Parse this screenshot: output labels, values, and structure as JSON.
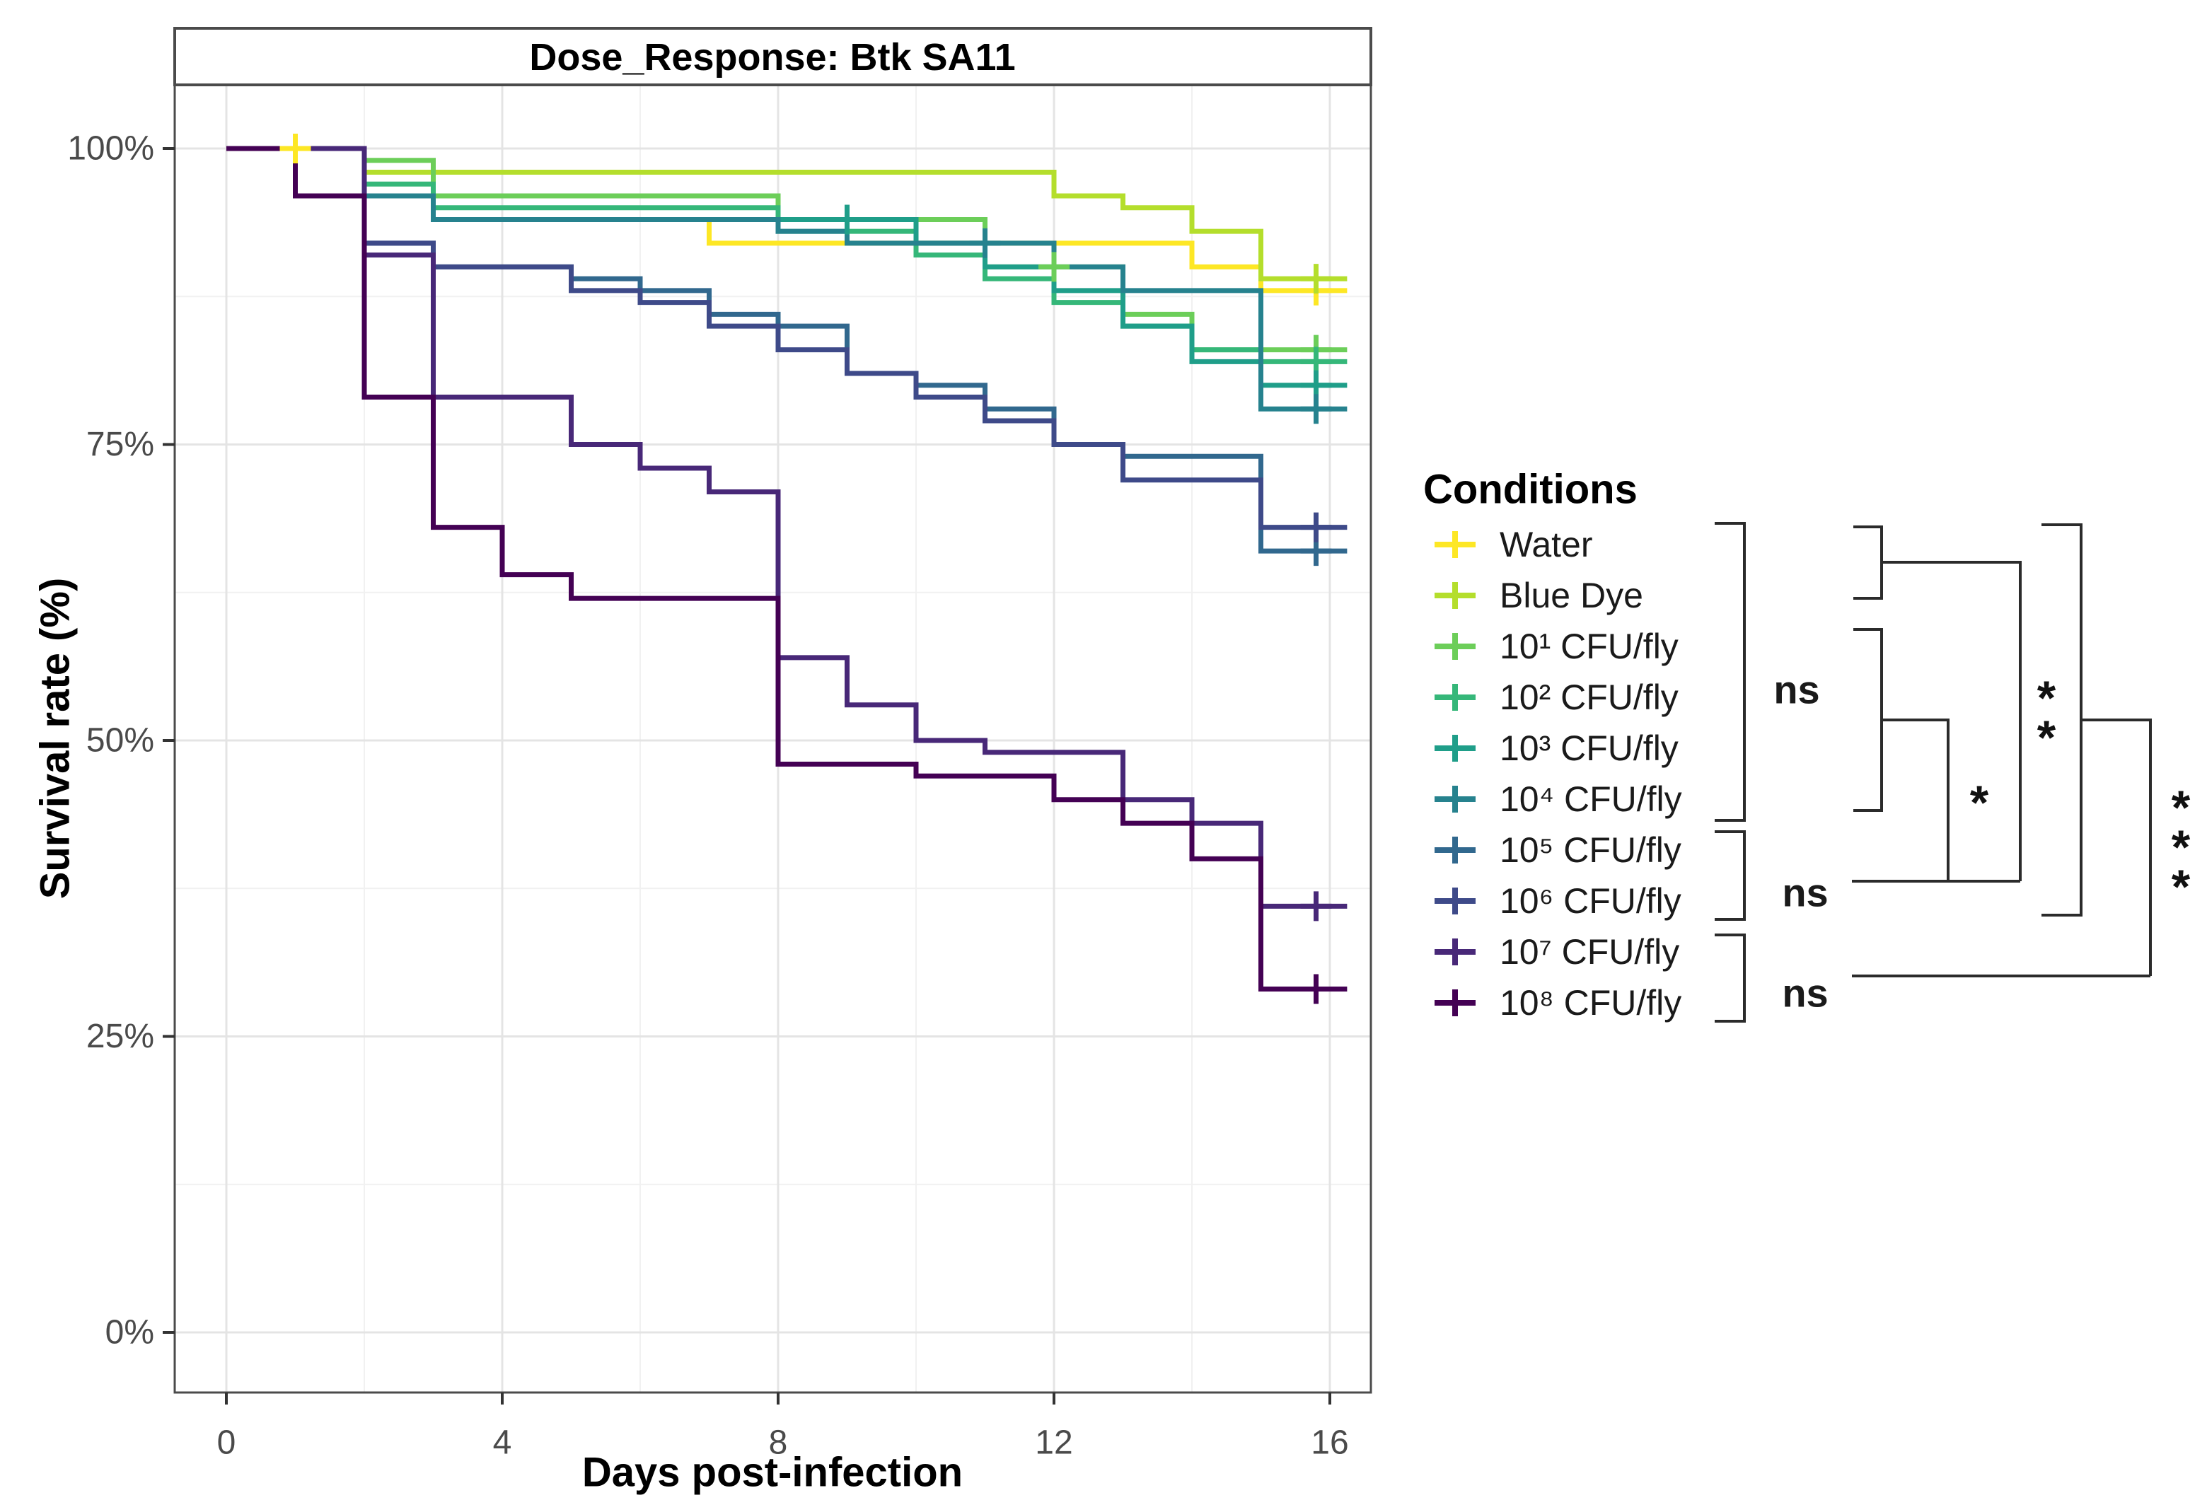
{
  "chart": {
    "title": "Dose_Response: Btk SA11",
    "x_axis": {
      "title": "Days post-infection",
      "tick_labels": [
        "0",
        "4",
        "8",
        "12",
        "16"
      ],
      "tick_values": [
        0,
        4,
        8,
        12,
        16
      ],
      "minor_values": [
        2,
        6,
        10,
        14
      ],
      "range": [
        0,
        16
      ]
    },
    "y_axis": {
      "title": "Survival rate (%)",
      "tick_labels": [
        "100%",
        "75%",
        "50%",
        "25%",
        "0%"
      ],
      "tick_values": [
        100,
        75,
        50,
        25,
        0
      ],
      "minor_values": [
        87.5,
        62.5,
        37.5,
        12.5
      ],
      "range": [
        0,
        100
      ]
    },
    "grid": "on"
  },
  "legend": {
    "title": "Conditions",
    "position": "right",
    "items": [
      {
        "label": "Water",
        "color": "#FDE725",
        "key": "plus-line"
      },
      {
        "label": "Blue Dye",
        "color": "#B4DE2C",
        "key": "plus-line"
      },
      {
        "label": "10¹ CFU/fly",
        "color": "#6CCE59",
        "key": "plus-line"
      },
      {
        "label": "10² CFU/fly",
        "color": "#35B779",
        "key": "plus-line"
      },
      {
        "label": "10³ CFU/fly",
        "color": "#1F9E89",
        "key": "plus-line"
      },
      {
        "label": "10⁴ CFU/fly",
        "color": "#26828E",
        "key": "plus-line"
      },
      {
        "label": "10⁵ CFU/fly",
        "color": "#31688E",
        "key": "plus-line"
      },
      {
        "label": "10⁶ CFU/fly",
        "color": "#3E4A89",
        "key": "plus-line"
      },
      {
        "label": "10⁷ CFU/fly",
        "color": "#482878",
        "key": "plus-line"
      },
      {
        "label": "10⁸ CFU/fly",
        "color": "#440154",
        "key": "plus-line"
      }
    ]
  },
  "chart_data": {
    "type": "line",
    "subtype": "kaplan-meier-step-survival",
    "title": "Dose_Response: Btk SA11",
    "xlabel": "Days post-infection",
    "ylabel": "Survival rate (%)",
    "xlim": [
      0,
      16.5
    ],
    "ylim": [
      0,
      100
    ],
    "units": {
      "x": "days",
      "y": "percent"
    },
    "series": [
      {
        "name": "Water",
        "color": "#FDE725",
        "points": [
          [
            0,
            100
          ],
          [
            2,
            96
          ],
          [
            3,
            94
          ],
          [
            7,
            92
          ],
          [
            14,
            90
          ],
          [
            15,
            88
          ],
          [
            16,
            88
          ]
        ],
        "censors": [
          [
            1,
            100
          ],
          [
            15.8,
            88
          ]
        ]
      },
      {
        "name": "Blue Dye",
        "color": "#B4DE2C",
        "points": [
          [
            0,
            100
          ],
          [
            2,
            98
          ],
          [
            12,
            96
          ],
          [
            13,
            95
          ],
          [
            14,
            93
          ],
          [
            15,
            89
          ],
          [
            16,
            89
          ]
        ],
        "censors": [
          [
            15.8,
            89
          ]
        ]
      },
      {
        "name": "10¹ CFU/fly",
        "color": "#6CCE59",
        "points": [
          [
            0,
            100
          ],
          [
            2,
            99
          ],
          [
            3,
            96
          ],
          [
            8,
            94
          ],
          [
            11,
            90
          ],
          [
            13,
            86
          ],
          [
            14,
            83
          ],
          [
            16,
            83
          ]
        ],
        "censors": [
          [
            12,
            90
          ],
          [
            15.8,
            83
          ]
        ]
      },
      {
        "name": "10² CFU/fly",
        "color": "#35B779",
        "points": [
          [
            0,
            100
          ],
          [
            2,
            97
          ],
          [
            3,
            95
          ],
          [
            8,
            93
          ],
          [
            10,
            91
          ],
          [
            11,
            89
          ],
          [
            12,
            87
          ],
          [
            13,
            85
          ],
          [
            14,
            83
          ],
          [
            15,
            82
          ],
          [
            16,
            82
          ]
        ],
        "censors": [
          [
            15.8,
            82
          ]
        ]
      },
      {
        "name": "10³ CFU/fly",
        "color": "#1F9E89",
        "points": [
          [
            0,
            100
          ],
          [
            2,
            96
          ],
          [
            3,
            94
          ],
          [
            10,
            92
          ],
          [
            11,
            90
          ],
          [
            12,
            88
          ],
          [
            13,
            85
          ],
          [
            14,
            82
          ],
          [
            15,
            80
          ],
          [
            16,
            80
          ]
        ],
        "censors": [
          [
            9,
            94
          ],
          [
            15.8,
            80
          ]
        ]
      },
      {
        "name": "10⁴ CFU/fly",
        "color": "#26828E",
        "points": [
          [
            0,
            100
          ],
          [
            2,
            96
          ],
          [
            3,
            94
          ],
          [
            8,
            93
          ],
          [
            9,
            92
          ],
          [
            12,
            90
          ],
          [
            13,
            88
          ],
          [
            15,
            78
          ],
          [
            16,
            78
          ]
        ],
        "censors": [
          [
            11,
            92
          ],
          [
            15.8,
            78
          ]
        ]
      },
      {
        "name": "10⁵ CFU/fly",
        "color": "#31688E",
        "points": [
          [
            0,
            100
          ],
          [
            2,
            92
          ],
          [
            3,
            90
          ],
          [
            5,
            89
          ],
          [
            6,
            88
          ],
          [
            7,
            86
          ],
          [
            8,
            85
          ],
          [
            9,
            81
          ],
          [
            10,
            80
          ],
          [
            11,
            78
          ],
          [
            12,
            75
          ],
          [
            13,
            74
          ],
          [
            15,
            66
          ],
          [
            16,
            66
          ]
        ],
        "censors": [
          [
            15.8,
            66
          ]
        ]
      },
      {
        "name": "10⁶ CFU/fly",
        "color": "#3E4A89",
        "points": [
          [
            0,
            100
          ],
          [
            2,
            92
          ],
          [
            3,
            90
          ],
          [
            5,
            88
          ],
          [
            6,
            87
          ],
          [
            7,
            85
          ],
          [
            8,
            83
          ],
          [
            9,
            81
          ],
          [
            10,
            79
          ],
          [
            11,
            77
          ],
          [
            12,
            75
          ],
          [
            13,
            72
          ],
          [
            15,
            68
          ],
          [
            16,
            68
          ]
        ],
        "censors": [
          [
            15.8,
            68
          ]
        ]
      },
      {
        "name": "10⁷ CFU/fly",
        "color": "#482878",
        "points": [
          [
            0,
            100
          ],
          [
            2,
            91
          ],
          [
            3,
            79
          ],
          [
            5,
            75
          ],
          [
            6,
            73
          ],
          [
            7,
            71
          ],
          [
            8,
            57
          ],
          [
            9,
            53
          ],
          [
            10,
            50
          ],
          [
            11,
            49
          ],
          [
            13,
            45
          ],
          [
            14,
            43
          ],
          [
            15,
            36
          ],
          [
            16,
            36
          ]
        ],
        "censors": [
          [
            15.8,
            36
          ]
        ]
      },
      {
        "name": "10⁸ CFU/fly",
        "color": "#440154",
        "points": [
          [
            0,
            100
          ],
          [
            1,
            96
          ],
          [
            2,
            79
          ],
          [
            3,
            68
          ],
          [
            4,
            64
          ],
          [
            5,
            62
          ],
          [
            8,
            48
          ],
          [
            10,
            47
          ],
          [
            12,
            45
          ],
          [
            13,
            43
          ],
          [
            14,
            40
          ],
          [
            15,
            29
          ],
          [
            16,
            29
          ]
        ],
        "censors": [
          [
            15.8,
            29
          ]
        ]
      }
    ],
    "censor_mark": "plus",
    "legend_position": "right"
  },
  "significance": {
    "group_brackets": [
      {
        "label": "ns",
        "covers": "Water to 10⁴ CFU/fly"
      },
      {
        "label": "ns",
        "covers": "10⁵ to 10⁶ CFU/fly"
      },
      {
        "label": "ns",
        "covers": "10⁷ to 10⁸ CFU/fly"
      }
    ],
    "comparisons": [
      {
        "label": "*",
        "between": "10¹–10⁴ group vs 10⁵–10⁶ group"
      },
      {
        "label": "**",
        "between": "Water/Blue Dye group vs 10⁵–10⁶ group"
      },
      {
        "label": "***",
        "between": "Water–10⁶ group vs 10⁷–10⁸ group"
      }
    ]
  }
}
